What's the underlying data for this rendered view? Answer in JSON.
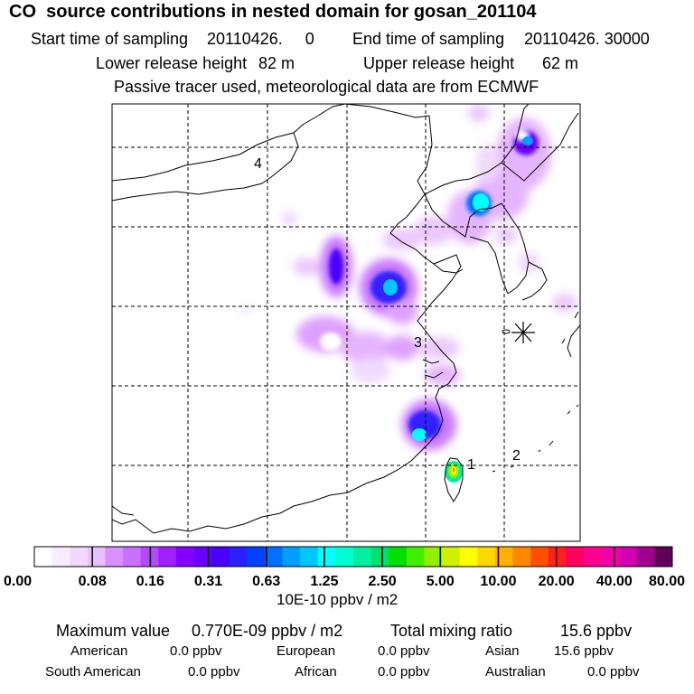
{
  "header": {
    "title": "CO  source contributions in nested domain for gosan_201104",
    "start_label": "Start time of sampling",
    "start_value": "20110426.     0",
    "end_label": "End time of sampling",
    "end_value": "20110426. 30000",
    "lower_label": "Lower release height",
    "lower_value": "82 m",
    "upper_label": "Upper release height",
    "upper_value": "62 m",
    "note": "Passive tracer used, meteorological data are from ECMWF"
  },
  "map": {
    "region_labels": [
      "4",
      "3",
      "1",
      "2"
    ],
    "receptor_marker": "asterisk-receptor-icon",
    "colors": {
      "land_lines": "#000000",
      "grid": "#000000"
    }
  },
  "colorbar": {
    "tick_labels": [
      "0.00",
      "0.08",
      "0.16",
      "0.31",
      "0.63",
      "1.25",
      "2.50",
      "5.00",
      "10.00",
      "20.00",
      "40.00",
      "80.00"
    ],
    "colors": [
      "#ffffff",
      "#f8ecff",
      "#f0d8ff",
      "#e8c0ff",
      "#d890ff",
      "#c870ff",
      "#b848ff",
      "#a020ff",
      "#8800ff",
      "#6a00ff",
      "#4a00ff",
      "#2a20ff",
      "#0040ff",
      "#0070ff",
      "#00a0ff",
      "#00c8ff",
      "#00ffff",
      "#00ffd0",
      "#00f0a0",
      "#00e070",
      "#00e000",
      "#40f000",
      "#90f000",
      "#d0f000",
      "#ffff00",
      "#ffd800",
      "#ffb000",
      "#ff8800",
      "#ff5000",
      "#ff2020",
      "#ff0060",
      "#ff0090",
      "#f000a8",
      "#d000b0",
      "#a00090",
      "#60005a"
    ],
    "unit": "10E-10 ppbv / m2"
  },
  "summary": {
    "max_label": "Maximum value",
    "max_value": "0.770E-09 ppbv / m2",
    "total_label": "Total mixing ratio",
    "total_value": "15.6 ppbv",
    "american_label": "American",
    "american_value": "0.0 ppbv",
    "european_label": "European",
    "european_value": "0.0 ppbv",
    "asian_label": "Asian",
    "asian_value": "15.6 ppbv",
    "south_american_label": "South American",
    "south_american_value": "0.0 ppbv",
    "african_label": "African",
    "african_value": "0.0 ppbv",
    "australian_label": "Australian",
    "australian_value": "0.0 ppbv"
  }
}
